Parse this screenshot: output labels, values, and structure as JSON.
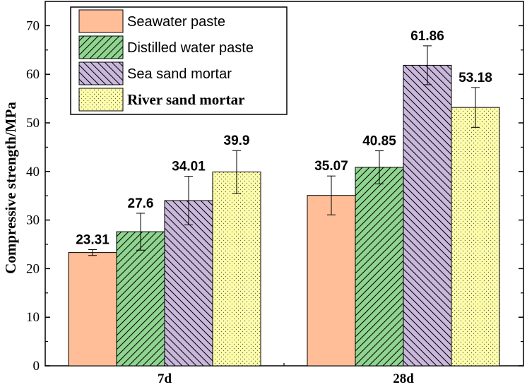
{
  "chart_data": {
    "type": "bar",
    "title": "",
    "xlabel": "",
    "ylabel": "Compressive strength/MPa",
    "ylim": [
      0,
      75
    ],
    "yticks": [
      "0",
      "10",
      "20",
      "30",
      "40",
      "50",
      "60",
      "70"
    ],
    "categories": [
      "7d",
      "28d"
    ],
    "series": [
      {
        "name": "Seawater paste",
        "values": [
          23.31,
          35.07
        ],
        "labels": [
          "23.31",
          "35.07"
        ],
        "errors": [
          0.6,
          4.0
        ],
        "color": "#FFBE98",
        "pattern": "solid"
      },
      {
        "name": "Distilled water paste",
        "values": [
          27.6,
          40.85
        ],
        "labels": [
          "27.6",
          "40.85"
        ],
        "errors": [
          3.8,
          3.4
        ],
        "color": "#8FD58F",
        "pattern": "forward-hatch"
      },
      {
        "name": "Sea sand mortar",
        "values": [
          34.01,
          61.86
        ],
        "labels": [
          "34.01",
          "61.86"
        ],
        "errors": [
          5.0,
          4.0
        ],
        "color": "#C9B8DB",
        "pattern": "back-hatch"
      },
      {
        "name": "River sand mortar",
        "values": [
          39.9,
          53.18
        ],
        "labels": [
          "39.9",
          "53.18"
        ],
        "errors": [
          4.4,
          4.1
        ],
        "color": "#FFFFAA",
        "pattern": "dots"
      }
    ],
    "grid": false,
    "legend_position": "top-left",
    "error_bars": true
  }
}
